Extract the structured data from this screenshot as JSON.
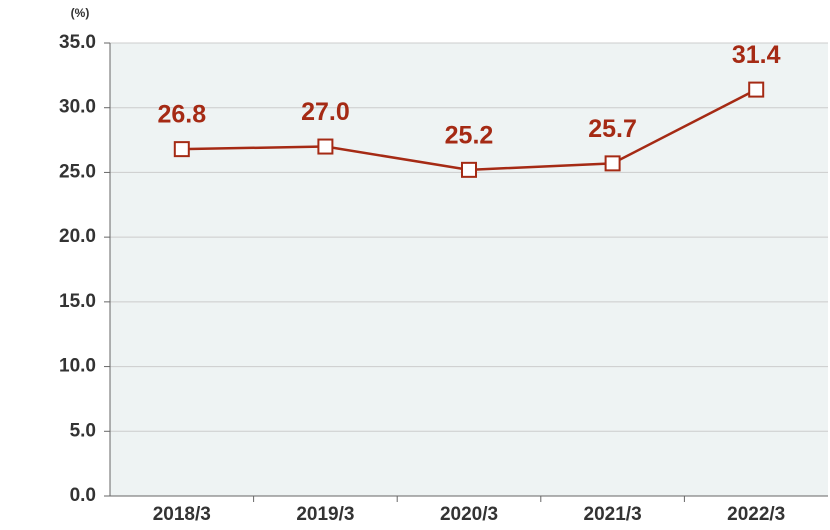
{
  "chart_data": {
    "type": "line",
    "y_unit": "(%)",
    "categories": [
      "2018/3",
      "2019/3",
      "2020/3",
      "2021/3",
      "2022/3"
    ],
    "values": [
      26.8,
      27.0,
      25.2,
      25.7,
      31.4
    ],
    "value_labels": [
      "26.8",
      "27.0",
      "25.2",
      "25.7",
      "31.4"
    ],
    "color": "#a52a14",
    "ylim": [
      0,
      35
    ],
    "yticks": [
      {
        "value": 0,
        "label": "0.0"
      },
      {
        "value": 5,
        "label": "5.0"
      },
      {
        "value": 10,
        "label": "10.0"
      },
      {
        "value": 15,
        "label": "15.0"
      },
      {
        "value": 20,
        "label": "20.0"
      },
      {
        "value": 25,
        "label": "25.0"
      },
      {
        "value": 30,
        "label": "30.0"
      },
      {
        "value": 35,
        "label": "35.0"
      }
    ],
    "grid": true
  }
}
